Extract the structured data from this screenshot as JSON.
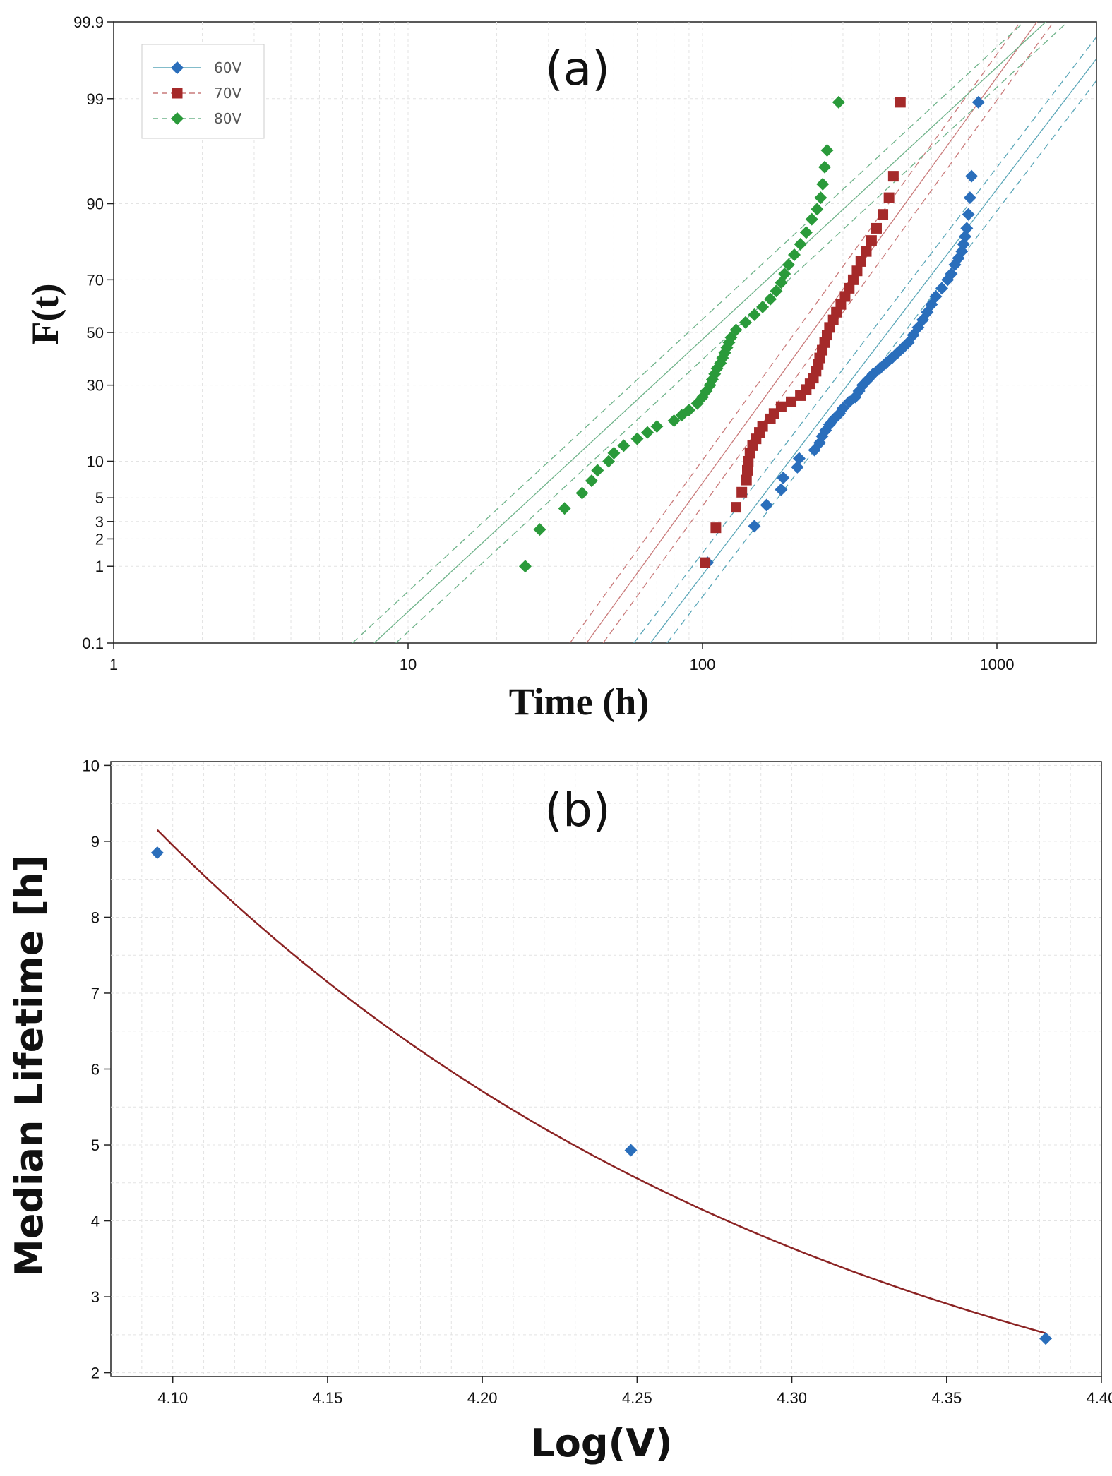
{
  "chart_data": [
    {
      "type": "scatter",
      "panel_label": "(a)",
      "xlabel": "Time (h)",
      "ylabel": "F(t)",
      "x_scale": "log",
      "y_scale": "lognormal probability",
      "xlim": [
        1,
        2000
      ],
      "ylim": [
        0.1,
        99.9
      ],
      "x_ticks": [
        1,
        10,
        100,
        1000
      ],
      "x_tick_labels": [
        "1",
        "10",
        "100",
        "1000"
      ],
      "y_ticks": [
        0.1,
        1,
        2,
        3,
        5,
        10,
        30,
        50,
        70,
        90,
        99,
        99.9
      ],
      "y_tick_labels": [
        "0.1",
        "1",
        "2",
        "3",
        "5",
        "10",
        "30",
        "50",
        "70",
        "90",
        "99",
        "99.9"
      ],
      "grid": true,
      "legend_position": "top-left",
      "series": [
        {
          "name": "60V",
          "color": "#2a6ebb",
          "marker": "diamond",
          "fit": {
            "median": 425,
            "sigma": 0.6,
            "band": 0.13,
            "line_color": "#5aa6b8"
          },
          "points": [
            [
              104,
              1.1
            ],
            [
              150,
              2.7
            ],
            [
              165,
              4.3
            ],
            [
              185,
              5.9
            ],
            [
              188,
              7.4
            ],
            [
              210,
              9.0
            ],
            [
              213,
              10.5
            ],
            [
              240,
              12.1
            ],
            [
              250,
              13.6
            ],
            [
              255,
              15.1
            ],
            [
              262,
              16.5
            ],
            [
              270,
              18.0
            ],
            [
              280,
              19.5
            ],
            [
              292,
              21.0
            ],
            [
              300,
              22.5
            ],
            [
              315,
              24.5
            ],
            [
              330,
              26.0
            ],
            [
              340,
              28.0
            ],
            [
              350,
              30.0
            ],
            [
              365,
              32.0
            ],
            [
              380,
              34.0
            ],
            [
              400,
              36.0
            ],
            [
              420,
              38.0
            ],
            [
              440,
              40.0
            ],
            [
              460,
              42.0
            ],
            [
              480,
              44.0
            ],
            [
              500,
              46.0
            ],
            [
              520,
              49.0
            ],
            [
              540,
              52.0
            ],
            [
              560,
              55.0
            ],
            [
              580,
              58.0
            ],
            [
              600,
              61.0
            ],
            [
              620,
              64.0
            ],
            [
              650,
              67.0
            ],
            [
              680,
              70.0
            ],
            [
              700,
              72.0
            ],
            [
              720,
              75.0
            ],
            [
              740,
              77.0
            ],
            [
              760,
              79.0
            ],
            [
              770,
              81.0
            ],
            [
              780,
              83.0
            ],
            [
              790,
              85.0
            ],
            [
              800,
              88.0
            ],
            [
              810,
              91.0
            ],
            [
              820,
              94.0
            ],
            [
              865,
              98.9
            ]
          ]
        },
        {
          "name": "70V",
          "color": "#a52a2a",
          "marker": "square",
          "fit": {
            "median": 235,
            "sigma": 0.57,
            "band": 0.13,
            "line_color": "#c97a7a"
          },
          "points": [
            [
              102,
              1.1
            ],
            [
              111,
              2.6
            ],
            [
              130,
              4.1
            ],
            [
              136,
              5.6
            ],
            [
              141,
              7.1
            ],
            [
              142,
              8.5
            ],
            [
              143,
              10.0
            ],
            [
              145,
              11.5
            ],
            [
              148,
              13.0
            ],
            [
              152,
              14.5
            ],
            [
              156,
              16.0
            ],
            [
              160,
              17.5
            ],
            [
              170,
              19.5
            ],
            [
              175,
              21.0
            ],
            [
              185,
              23.0
            ],
            [
              200,
              24.5
            ],
            [
              215,
              26.5
            ],
            [
              225,
              28.5
            ],
            [
              232,
              30.5
            ],
            [
              238,
              32.5
            ],
            [
              243,
              35.0
            ],
            [
              247,
              37.5
            ],
            [
              250,
              40.0
            ],
            [
              255,
              43.0
            ],
            [
              260,
              46.0
            ],
            [
              265,
              49.0
            ],
            [
              270,
              52.0
            ],
            [
              278,
              55.0
            ],
            [
              285,
              58.0
            ],
            [
              295,
              61.0
            ],
            [
              305,
              64.0
            ],
            [
              315,
              67.0
            ],
            [
              325,
              70.0
            ],
            [
              335,
              73.0
            ],
            [
              345,
              76.0
            ],
            [
              360,
              79.0
            ],
            [
              375,
              82.0
            ],
            [
              390,
              85.0
            ],
            [
              410,
              88.0
            ],
            [
              430,
              91.0
            ],
            [
              445,
              94.0
            ],
            [
              470,
              98.9
            ]
          ]
        },
        {
          "name": "80V",
          "color": "#2a9a3a",
          "marker": "diamond",
          "fit": {
            "median": 106,
            "sigma": 0.85,
            "band": 0.17,
            "line_color": "#6fb38a"
          },
          "points": [
            [
              25,
              1.0
            ],
            [
              28,
              2.5
            ],
            [
              34,
              4.0
            ],
            [
              39,
              5.5
            ],
            [
              42,
              7.0
            ],
            [
              44,
              8.5
            ],
            [
              48,
              10.0
            ],
            [
              50,
              11.5
            ],
            [
              54,
              13.0
            ],
            [
              60,
              14.5
            ],
            [
              65,
              16.0
            ],
            [
              70,
              17.5
            ],
            [
              80,
              19.0
            ],
            [
              85,
              20.5
            ],
            [
              90,
              22.0
            ],
            [
              96,
              24.0
            ],
            [
              100,
              26.0
            ],
            [
              103,
              28.0
            ],
            [
              106,
              30.0
            ],
            [
              108,
              32.0
            ],
            [
              110,
              34.0
            ],
            [
              112,
              36.0
            ],
            [
              115,
              38.0
            ],
            [
              117,
              40.0
            ],
            [
              119,
              42.0
            ],
            [
              121,
              44.0
            ],
            [
              123,
              46.0
            ],
            [
              125,
              48.0
            ],
            [
              130,
              51.0
            ],
            [
              140,
              54.0
            ],
            [
              150,
              57.0
            ],
            [
              160,
              60.0
            ],
            [
              170,
              63.0
            ],
            [
              178,
              66.0
            ],
            [
              185,
              69.0
            ],
            [
              190,
              72.0
            ],
            [
              196,
              75.0
            ],
            [
              205,
              78.0
            ],
            [
              215,
              81.0
            ],
            [
              225,
              84.0
            ],
            [
              235,
              87.0
            ],
            [
              245,
              89.0
            ],
            [
              252,
              91.0
            ],
            [
              256,
              93.0
            ],
            [
              260,
              95.0
            ],
            [
              265,
              96.5
            ],
            [
              290,
              98.9
            ]
          ]
        }
      ]
    },
    {
      "type": "scatter",
      "panel_label": "(b)",
      "xlabel": "Log(V)",
      "ylabel": "Median Lifetime [h]",
      "xlim": [
        4.08,
        4.4
      ],
      "ylim": [
        1.95,
        10.05
      ],
      "x_ticks": [
        4.1,
        4.15,
        4.2,
        4.25,
        4.3,
        4.35,
        4.4
      ],
      "x_tick_labels": [
        "4.10",
        "4.15",
        "4.20",
        "4.25",
        "4.30",
        "4.35",
        "4.40"
      ],
      "y_ticks": [
        2,
        3,
        4,
        5,
        6,
        7,
        8,
        9,
        10
      ],
      "y_tick_labels": [
        "2",
        "3",
        "4",
        "5",
        "6",
        "7",
        "8",
        "9",
        "10"
      ],
      "grid": true,
      "points_color": "#2a6ebb",
      "curve_color": "#8b2323",
      "points": [
        [
          4.095,
          8.85
        ],
        [
          4.248,
          4.93
        ],
        [
          4.382,
          2.45
        ]
      ],
      "fit_curve": {
        "x_start": 4.095,
        "x_end": 4.382,
        "y_start": 9.15,
        "y_end": 2.52
      }
    }
  ]
}
